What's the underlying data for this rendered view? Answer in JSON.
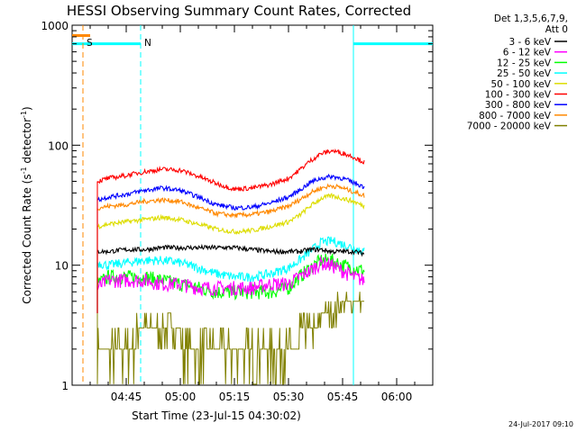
{
  "chart_data": {
    "type": "line",
    "title": "HESSI Observing Summary Count Rates, Corrected",
    "xlabel": "Start Time (23-Jul-15 04:30:02)",
    "ylabel": "Corrected Count Rate (s⁻¹ detector⁻¹)",
    "ylabel_parts": {
      "main": "Corrected Count Rate (s",
      "sup1": "-1",
      "mid": " detector",
      "sup2": "-1",
      "end": ")"
    },
    "yscale": "log",
    "ylim": [
      1,
      1000
    ],
    "xlim_minutes": [
      0,
      100
    ],
    "xticks": [
      {
        "minute": 15,
        "label": "04:45"
      },
      {
        "minute": 30,
        "label": "05:00"
      },
      {
        "minute": 45,
        "label": "05:15"
      },
      {
        "minute": 60,
        "label": "05:30"
      },
      {
        "minute": 75,
        "label": "05:45"
      },
      {
        "minute": 90,
        "label": "06:00"
      }
    ],
    "yticks": [
      {
        "value": 1,
        "label": "1"
      },
      {
        "value": 10,
        "label": "10"
      },
      {
        "value": 100,
        "label": "100"
      },
      {
        "value": 1000,
        "label": "1000"
      }
    ],
    "legend_placement": "top-right, outside plot",
    "legend_header": [
      "Det 1,3,5,6,7,9,",
      "Att 0"
    ],
    "x": [
      7,
      10,
      15,
      20,
      25,
      30,
      35,
      40,
      45,
      50,
      55,
      60,
      63,
      66,
      69,
      72,
      75,
      78,
      81
    ],
    "series": [
      {
        "name": "3 - 6 keV",
        "color": "#000000",
        "values": [
          13,
          13,
          13.5,
          13.5,
          14,
          14,
          14,
          14,
          14,
          13.5,
          13,
          13,
          13,
          13.5,
          13.5,
          13,
          13,
          13,
          12.5
        ]
      },
      {
        "name": "6 - 12 keV",
        "color": "#ff00ff",
        "values": [
          6.5,
          7.5,
          7.5,
          7.5,
          7,
          7,
          6.5,
          6.5,
          6.5,
          6.5,
          7,
          7,
          8,
          9,
          10.5,
          10,
          9,
          8,
          7.5
        ]
      },
      {
        "name": "12 - 25 keV",
        "color": "#00ff00",
        "values": [
          7,
          8,
          8,
          8,
          7.5,
          7,
          6.5,
          6,
          6,
          6,
          6,
          6.5,
          8,
          9.5,
          11,
          11,
          10,
          9.5,
          9
        ]
      },
      {
        "name": "25 - 50 keV",
        "color": "#00ffff",
        "values": [
          10.5,
          10,
          10.5,
          11,
          11,
          10.5,
          9.5,
          8.5,
          8,
          8,
          8.5,
          9.5,
          11,
          13,
          15.5,
          16,
          15,
          14,
          13
        ]
      },
      {
        "name": "50 - 100 keV",
        "color": "#dddd00",
        "values": [
          21,
          22,
          23,
          24,
          25,
          24,
          22,
          20,
          19,
          19.5,
          21,
          23,
          26,
          31,
          36,
          38,
          36,
          34,
          31
        ]
      },
      {
        "name": "100 - 300 keV",
        "color": "#ff0000",
        "values": [
          50,
          53,
          56,
          60,
          63,
          62,
          55,
          48,
          43,
          44,
          47,
          53,
          62,
          74,
          85,
          90,
          86,
          80,
          72
        ]
      },
      {
        "name": "300 - 800 keV",
        "color": "#0000ff",
        "values": [
          35,
          37,
          39,
          42,
          44,
          42,
          37,
          32,
          30,
          30.5,
          33,
          37,
          42,
          49,
          53,
          55,
          53,
          49,
          45
        ]
      },
      {
        "name": "800 - 7000 keV",
        "color": "#ff8800",
        "values": [
          30,
          31,
          32,
          34,
          35,
          34,
          30,
          27,
          26,
          26.5,
          28,
          31,
          35,
          40,
          44,
          46,
          44,
          41,
          38
        ]
      },
      {
        "name": "7000 - 20000 keV",
        "color": "#808000",
        "values": [
          2,
          2,
          2,
          3,
          3,
          2.5,
          2,
          2,
          2,
          2,
          2,
          2,
          2.5,
          3,
          3.5,
          4,
          5,
          5,
          5
        ]
      }
    ],
    "attenuator_states": [
      {
        "label": "S",
        "minute": 3,
        "color": "#ff8800"
      },
      {
        "label": "N",
        "minute": 19,
        "color": "#00ffff"
      }
    ],
    "night_intervals_minutes": [
      [
        -10,
        19
      ],
      [
        78,
        109
      ]
    ],
    "timestamp": "24-Jul-2017 09:10"
  }
}
